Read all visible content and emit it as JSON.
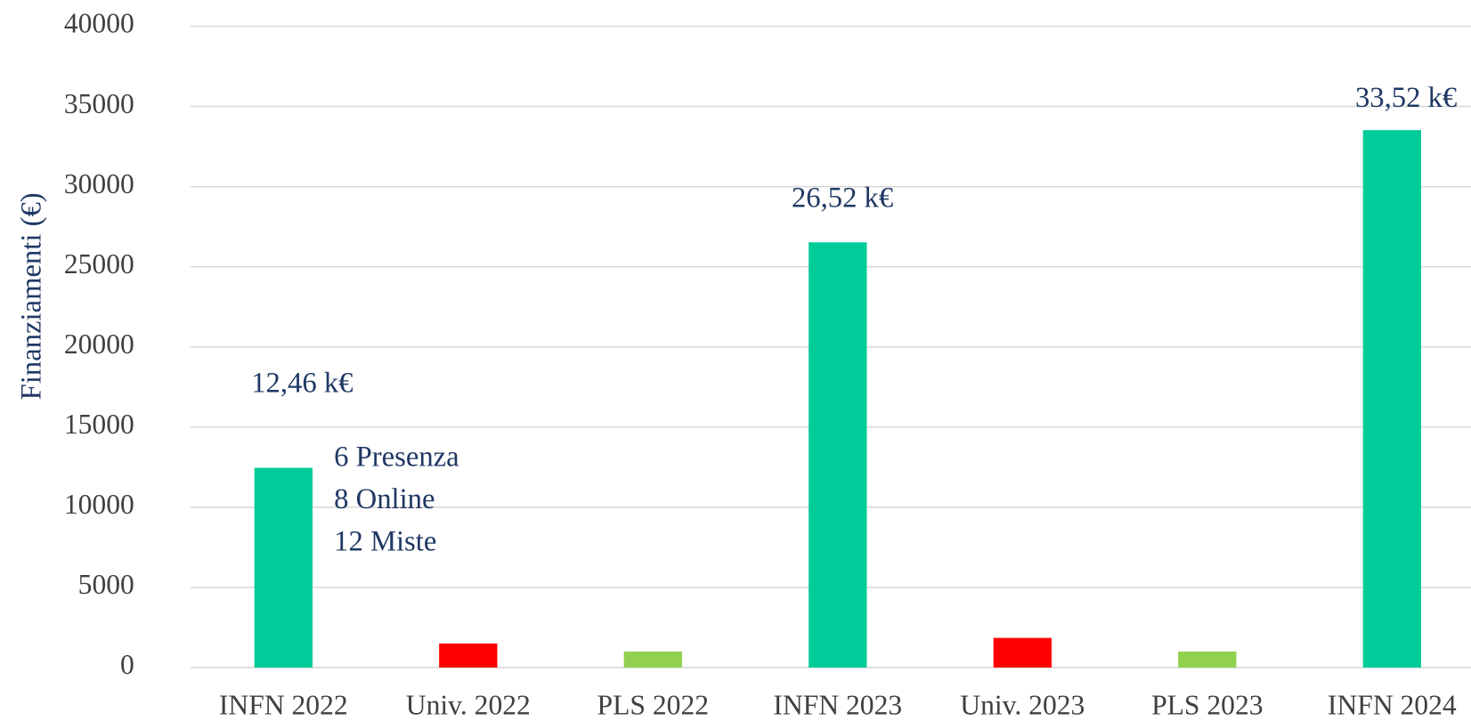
{
  "chart_data": {
    "type": "bar",
    "y_label": "Finanziamenti (€)",
    "categories": [
      "INFN 2022",
      "Univ. 2022",
      "PLS 2022",
      "INFN 2023",
      "Univ. 2023",
      "PLS 2023",
      "INFN 2024"
    ],
    "values": [
      12460,
      1500,
      1000,
      26520,
      1850,
      1000,
      33520
    ],
    "value_labels": [
      "12,46 k€",
      null,
      null,
      "26,52 k€",
      null,
      null,
      "33,52 k€"
    ],
    "colors": [
      "#00cc99",
      "#ff0000",
      "#92d050",
      "#00cc99",
      "#ff0000",
      "#92d050",
      "#00cc99"
    ],
    "annotations": [
      "6 Presenza",
      "8 Online",
      "12 Miste"
    ],
    "ylim": [
      0,
      40000
    ],
    "yticks": [
      0,
      5000,
      10000,
      15000,
      20000,
      25000,
      30000,
      35000,
      40000
    ],
    "grid": true
  }
}
